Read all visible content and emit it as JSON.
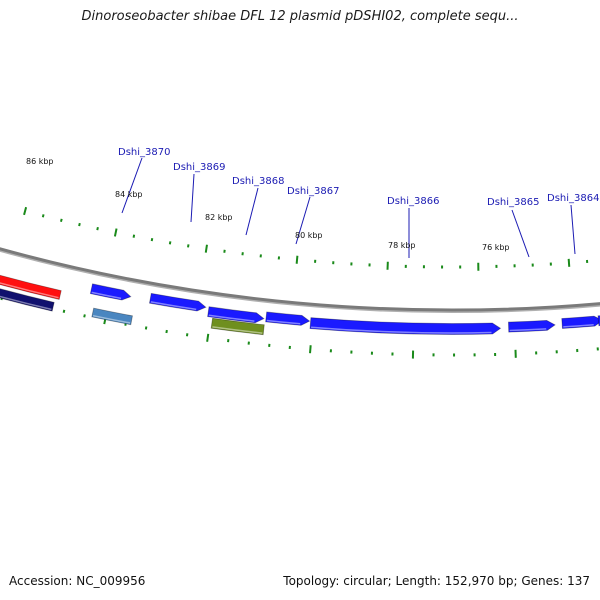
{
  "title": "Dinoroseobacter shibae DFL 12 plasmid pDSHI02, complete sequ...",
  "footer": {
    "accession": "Accession: NC_009956",
    "summary": "Topology: circular; Length: 152,970 bp; Genes: 137"
  },
  "colors": {
    "backbone": "#7a7a7a",
    "gene_forward": "#1a1aff",
    "gene_other": "#4a86c0",
    "gene_highlight": "#6f8f1f",
    "gene_red": "#ff1010",
    "gene_navy": "#10106e",
    "tick": "#1a8a1a",
    "label_line": "#1b1bb3"
  },
  "scale_labels": [
    "86 kbp",
    "84 kbp",
    "82 kbp",
    "80 kbp",
    "78 kbp",
    "76 kbp"
  ],
  "gene_labels": [
    "Dshi_3870",
    "Dshi_3869",
    "Dshi_3868",
    "Dshi_3867",
    "Dshi_3866",
    "Dshi_3865",
    "Dshi_3864"
  ]
}
